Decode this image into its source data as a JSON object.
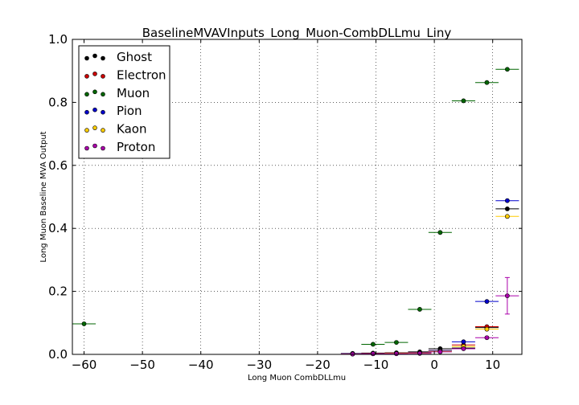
{
  "chart_data": {
    "type": "scatter",
    "title": "BaselineMVAVInputs_Long_Muon-CombDLLmu_Liny",
    "xlabel": "Long Muon CombDLLmu",
    "ylabel": "Long Muon Baseline MVA Output",
    "xlim": [
      -62,
      15
    ],
    "ylim": [
      0.0,
      1.0
    ],
    "xticks": [
      -60,
      -50,
      -40,
      -30,
      -20,
      -10,
      0,
      10
    ],
    "yticks": [
      0.0,
      0.2,
      0.4,
      0.6,
      0.8,
      1.0
    ],
    "xtick_labels": [
      "−60",
      "−50",
      "−40",
      "−30",
      "−20",
      "−10",
      "0",
      "10"
    ],
    "ytick_labels": [
      "0.0",
      "0.2",
      "0.4",
      "0.6",
      "0.8",
      "1.0"
    ],
    "grid": true,
    "legend_position": "top-left",
    "series": [
      {
        "name": "Ghost",
        "color": "#000000",
        "points": [
          {
            "x": -14,
            "xerr": 2,
            "y": 0.003,
            "yerr": 0
          },
          {
            "x": -10.5,
            "xerr": 2,
            "y": 0.004,
            "yerr": 0
          },
          {
            "x": -6.5,
            "xerr": 2,
            "y": 0.005,
            "yerr": 0
          },
          {
            "x": -2.5,
            "xerr": 2,
            "y": 0.008,
            "yerr": 0
          },
          {
            "x": 1,
            "xerr": 2,
            "y": 0.018,
            "yerr": 0
          },
          {
            "x": 5,
            "xerr": 2,
            "y": 0.02,
            "yerr": 0
          },
          {
            "x": 9,
            "xerr": 2,
            "y": 0.085,
            "yerr": 0
          },
          {
            "x": 12.5,
            "xerr": 2,
            "y": 0.462,
            "yerr": 0
          }
        ]
      },
      {
        "name": "Electron",
        "color": "#cc0000",
        "points": [
          {
            "x": -14,
            "xerr": 2,
            "y": 0.002,
            "yerr": 0
          },
          {
            "x": -10.5,
            "xerr": 2,
            "y": 0.003,
            "yerr": 0
          },
          {
            "x": -6.5,
            "xerr": 2,
            "y": 0.004,
            "yerr": 0
          },
          {
            "x": -2.5,
            "xerr": 2,
            "y": 0.006,
            "yerr": 0
          },
          {
            "x": 1,
            "xerr": 2,
            "y": 0.012,
            "yerr": 0
          },
          {
            "x": 5,
            "xerr": 2,
            "y": 0.03,
            "yerr": 0
          },
          {
            "x": 9,
            "xerr": 2,
            "y": 0.088,
            "yerr": 0
          }
        ]
      },
      {
        "name": "Muon",
        "color": "#006600",
        "points": [
          {
            "x": -60,
            "xerr": 2,
            "y": 0.097,
            "yerr": 0
          },
          {
            "x": -10.5,
            "xerr": 2,
            "y": 0.032,
            "yerr": 0
          },
          {
            "x": -6.5,
            "xerr": 2,
            "y": 0.038,
            "yerr": 0
          },
          {
            "x": -2.5,
            "xerr": 2,
            "y": 0.143,
            "yerr": 0
          },
          {
            "x": 1,
            "xerr": 2,
            "y": 0.387,
            "yerr": 0
          },
          {
            "x": 5,
            "xerr": 2,
            "y": 0.805,
            "yerr": 0
          },
          {
            "x": 9,
            "xerr": 2,
            "y": 0.863,
            "yerr": 0
          },
          {
            "x": 12.5,
            "xerr": 2,
            "y": 0.905,
            "yerr": 0
          }
        ]
      },
      {
        "name": "Pion",
        "color": "#0000cc",
        "points": [
          {
            "x": -14,
            "xerr": 2,
            "y": 0.002,
            "yerr": 0
          },
          {
            "x": -10.5,
            "xerr": 2,
            "y": 0.002,
            "yerr": 0
          },
          {
            "x": -6.5,
            "xerr": 2,
            "y": 0.003,
            "yerr": 0
          },
          {
            "x": -2.5,
            "xerr": 2,
            "y": 0.005,
            "yerr": 0
          },
          {
            "x": 1,
            "xerr": 2,
            "y": 0.012,
            "yerr": 0
          },
          {
            "x": 5,
            "xerr": 2,
            "y": 0.04,
            "yerr": 0
          },
          {
            "x": 9,
            "xerr": 2,
            "y": 0.168,
            "yerr": 0
          },
          {
            "x": 12.5,
            "xerr": 2,
            "y": 0.488,
            "yerr": 0
          }
        ]
      },
      {
        "name": "Kaon",
        "color": "#ffcc00",
        "points": [
          {
            "x": -14,
            "xerr": 2,
            "y": 0.001,
            "yerr": 0
          },
          {
            "x": -10.5,
            "xerr": 2,
            "y": 0.002,
            "yerr": 0
          },
          {
            "x": -6.5,
            "xerr": 2,
            "y": 0.003,
            "yerr": 0
          },
          {
            "x": -2.5,
            "xerr": 2,
            "y": 0.004,
            "yerr": 0
          },
          {
            "x": 1,
            "xerr": 2,
            "y": 0.01,
            "yerr": 0
          },
          {
            "x": 5,
            "xerr": 2,
            "y": 0.025,
            "yerr": 0
          },
          {
            "x": 9,
            "xerr": 2,
            "y": 0.08,
            "yerr": 0
          },
          {
            "x": 12.5,
            "xerr": 2,
            "y": 0.438,
            "yerr": 0
          }
        ]
      },
      {
        "name": "Proton",
        "color": "#aa00aa",
        "points": [
          {
            "x": -14,
            "xerr": 2,
            "y": 0.001,
            "yerr": 0
          },
          {
            "x": -10.5,
            "xerr": 2,
            "y": 0.002,
            "yerr": 0
          },
          {
            "x": -6.5,
            "xerr": 2,
            "y": 0.002,
            "yerr": 0
          },
          {
            "x": -2.5,
            "xerr": 2,
            "y": 0.003,
            "yerr": 0
          },
          {
            "x": 1,
            "xerr": 2,
            "y": 0.008,
            "yerr": 0
          },
          {
            "x": 5,
            "xerr": 2,
            "y": 0.018,
            "yerr": 0
          },
          {
            "x": 9,
            "xerr": 2,
            "y": 0.053,
            "yerr": 0
          },
          {
            "x": 12.5,
            "xerr": 2,
            "y": 0.186,
            "yerr": 0.058
          }
        ]
      }
    ]
  }
}
